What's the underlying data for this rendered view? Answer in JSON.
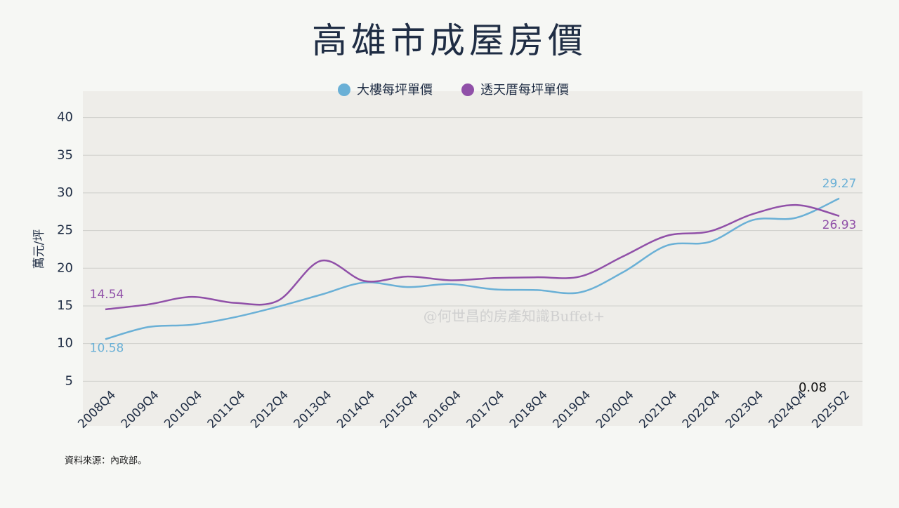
{
  "chart_data": {
    "type": "line",
    "title": "高雄市成屋房價",
    "y_label": "萬元/坪",
    "source": "資料來源：內政部。",
    "watermark": "@何世昌的房產知識Buffet+",
    "annotation": "0.08",
    "categories": [
      "2008Q4",
      "2009Q4",
      "2010Q4",
      "2011Q4",
      "2012Q4",
      "2013Q4",
      "2014Q4",
      "2015Q4",
      "2016Q4",
      "2017Q4",
      "2018Q4",
      "2019Q4",
      "2020Q4",
      "2021Q4",
      "2022Q4",
      "2023Q4",
      "2024Q4",
      "2025Q2"
    ],
    "series": [
      {
        "name": "大樓每坪單價",
        "color": "#6ab0d6",
        "values": [
          10.58,
          12.2,
          12.5,
          13.5,
          14.9,
          16.5,
          18.1,
          17.5,
          17.9,
          17.2,
          17.1,
          16.8,
          19.5,
          23.0,
          23.5,
          26.4,
          26.7,
          29.27
        ],
        "value_labels": [
          "10.58",
          null,
          null,
          null,
          null,
          null,
          null,
          null,
          null,
          null,
          null,
          null,
          null,
          null,
          null,
          null,
          null,
          "29.27"
        ]
      },
      {
        "name": "透天厝每坪單價",
        "color": "#9050a8",
        "values": [
          14.54,
          15.2,
          16.2,
          15.4,
          15.7,
          21.0,
          18.3,
          18.9,
          18.4,
          18.7,
          18.8,
          18.9,
          21.6,
          24.3,
          24.9,
          27.2,
          28.4,
          26.93
        ],
        "value_labels": [
          "14.54",
          null,
          null,
          null,
          null,
          null,
          null,
          null,
          null,
          null,
          null,
          null,
          null,
          null,
          null,
          null,
          null,
          "26.93"
        ]
      }
    ],
    "ylim": [
      0,
      43.5
    ],
    "yticks": [
      5,
      10,
      15,
      20,
      25,
      30,
      35,
      40
    ],
    "grid": true
  }
}
